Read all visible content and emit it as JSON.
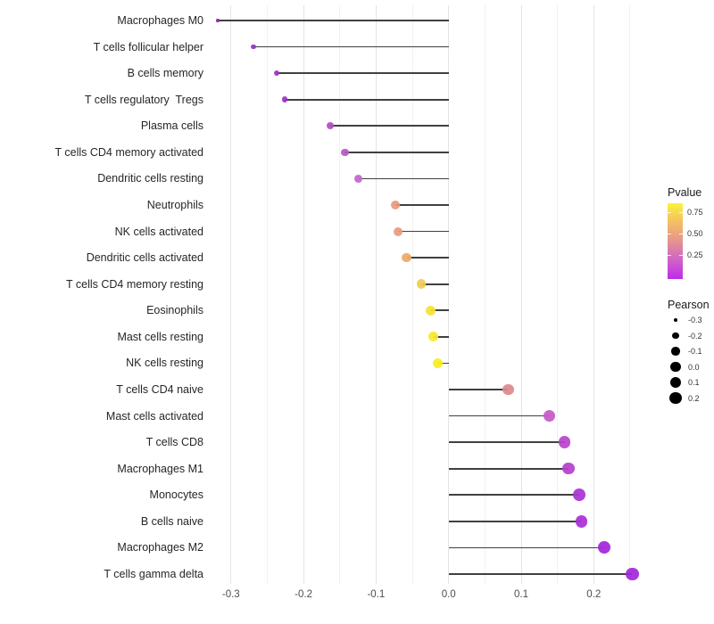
{
  "chart_data": {
    "type": "scatter",
    "subtype": "lollipop",
    "title": "",
    "xlabel": "",
    "ylabel": "",
    "xlim": [
      -0.328,
      0.289
    ],
    "x_tick_labels": [
      "-0.3",
      "-0.2",
      "-0.1",
      "0.0",
      "0.1",
      "0.2"
    ],
    "x_tick_values": [
      -0.3,
      -0.2,
      -0.1,
      0.0,
      0.1,
      0.2
    ],
    "grid": {
      "vertical_step": 0.05,
      "vertical_range": [
        -0.3,
        0.25
      ],
      "horizontal": false
    },
    "baseline_x": 0.0,
    "stem_color": "#404040",
    "points": [
      {
        "label": "Macrophages M0",
        "pearson": -0.318,
        "color": "#8b28b5"
      },
      {
        "label": "T cells follicular helper",
        "pearson": -0.269,
        "color": "#9a30be"
      },
      {
        "label": "B cells memory",
        "pearson": -0.237,
        "color": "#9d33c1"
      },
      {
        "label": "T cells regulatory  Tregs",
        "pearson": -0.226,
        "color": "#9e35c2"
      },
      {
        "label": "Plasma cells",
        "pearson": -0.163,
        "color": "#b44ec6"
      },
      {
        "label": "T cells CD4 memory activated",
        "pearson": -0.143,
        "color": "#ba58c8"
      },
      {
        "label": "Dendritic cells resting",
        "pearson": -0.124,
        "color": "#c168ca"
      },
      {
        "label": "Neutrophils",
        "pearson": -0.073,
        "color": "#e89b7d"
      },
      {
        "label": "NK cells activated",
        "pearson": -0.07,
        "color": "#e89c80"
      },
      {
        "label": "Dendritic cells activated",
        "pearson": -0.058,
        "color": "#ebaa64"
      },
      {
        "label": "T cells CD4 memory resting",
        "pearson": -0.038,
        "color": "#f0cc50"
      },
      {
        "label": "Eosinophils",
        "pearson": -0.025,
        "color": "#f4e336"
      },
      {
        "label": "Mast cells resting",
        "pearson": -0.021,
        "color": "#f5e92b"
      },
      {
        "label": "NK cells resting",
        "pearson": -0.015,
        "color": "#f7ef1e"
      },
      {
        "label": "T cells CD4 naive",
        "pearson": 0.082,
        "color": "#dc8a8e"
      },
      {
        "label": "Mast cells activated",
        "pearson": 0.139,
        "color": "#c459c8"
      },
      {
        "label": "T cells CD8",
        "pearson": 0.16,
        "color": "#b946cb"
      },
      {
        "label": "Macrophages M1",
        "pearson": 0.165,
        "color": "#b640ce"
      },
      {
        "label": "Monocytes",
        "pearson": 0.18,
        "color": "#ac33d4"
      },
      {
        "label": "B cells naive",
        "pearson": 0.183,
        "color": "#aa30d4"
      },
      {
        "label": "Macrophages M2",
        "pearson": 0.214,
        "color": "#a426dc"
      },
      {
        "label": "T cells gamma delta",
        "pearson": 0.253,
        "color": "#a228db"
      }
    ],
    "legends": {
      "pvalue": {
        "title": "Pvalue",
        "tick_labels": [
          "0.75",
          "0.50",
          "0.25"
        ],
        "gradient_top_to_bottom": [
          "#fbf23c",
          "#f4be63",
          "#e5948f",
          "#cf63c8",
          "#be2bec"
        ]
      },
      "pearson": {
        "title": "Pearson",
        "size_labels": [
          "-0.3",
          "-0.2",
          "-0.1",
          "0.0",
          "0.1",
          "0.2"
        ],
        "size_values": [
          -0.3,
          -0.2,
          -0.1,
          0.0,
          0.1,
          0.2
        ],
        "dot_color": "#000000"
      }
    },
    "legend_position": "right"
  }
}
